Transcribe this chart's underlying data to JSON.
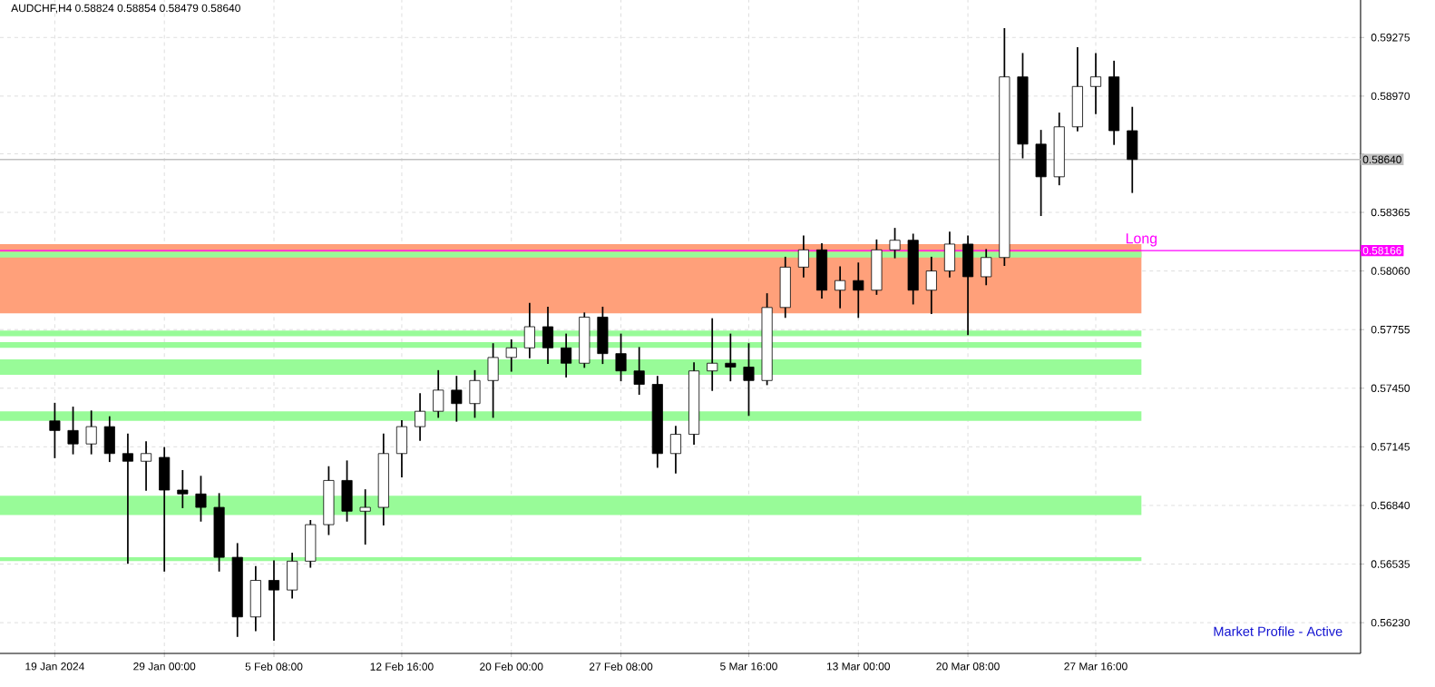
{
  "chart_data": {
    "type": "candlestick",
    "title": "AUDCHF,H4  0.58824 0.58854 0.58479 0.58640",
    "categories": [
      "19 Jan 2024",
      null,
      null,
      null,
      null,
      null,
      "29 Jan 00:00",
      null,
      null,
      null,
      null,
      null,
      "5 Feb 08:00",
      null,
      null,
      null,
      null,
      null,
      null,
      "12 Feb 16:00",
      null,
      null,
      null,
      null,
      null,
      "20 Feb 00:00",
      null,
      null,
      null,
      null,
      null,
      "27 Feb 08:00",
      null,
      null,
      null,
      null,
      null,
      null,
      "5 Mar 16:00",
      null,
      null,
      null,
      null,
      null,
      "13 Mar 00:00",
      null,
      null,
      null,
      null,
      null,
      "20 Mar 08:00",
      null,
      null,
      null,
      null,
      null,
      null,
      "27 Mar 16:00",
      null,
      null,
      null,
      null,
      null,
      null,
      null,
      null,
      null,
      null,
      null,
      null,
      null,
      null
    ],
    "ohlc": [
      [
        0.5728,
        0.5737,
        0.5709,
        0.5723
      ],
      [
        0.5723,
        0.5735,
        0.5711,
        0.5716
      ],
      [
        0.5716,
        0.5733,
        0.5711,
        0.5725
      ],
      [
        0.5725,
        0.573,
        0.5707,
        0.5711
      ],
      [
        0.5711,
        0.5721,
        0.5654,
        0.5707
      ],
      [
        0.5707,
        0.5717,
        0.5692,
        0.5711
      ],
      [
        0.5709,
        0.5714,
        0.565,
        0.5692
      ],
      [
        0.5692,
        0.5702,
        0.5683,
        0.569
      ],
      [
        0.569,
        0.5699,
        0.5676,
        0.5683
      ],
      [
        0.5683,
        0.569,
        0.565,
        0.5657
      ],
      [
        0.5657,
        0.5664,
        0.5616,
        0.5626
      ],
      [
        0.5626,
        0.5652,
        0.5619,
        0.5645
      ],
      [
        0.5645,
        0.5655,
        0.5614,
        0.564
      ],
      [
        0.564,
        0.5659,
        0.5636,
        0.5655
      ],
      [
        0.5655,
        0.5676,
        0.5652,
        0.5674
      ],
      [
        0.5674,
        0.5704,
        0.5669,
        0.5697
      ],
      [
        0.5697,
        0.5707,
        0.5676,
        0.5681
      ],
      [
        0.5681,
        0.5692,
        0.5664,
        0.5683
      ],
      [
        0.5683,
        0.5721,
        0.5674,
        0.5711
      ],
      [
        0.5711,
        0.5728,
        0.5699,
        0.5725
      ],
      [
        0.5725,
        0.5742,
        0.5718,
        0.5733
      ],
      [
        0.5733,
        0.5754,
        0.573,
        0.5744
      ],
      [
        0.5744,
        0.5751,
        0.5728,
        0.5737
      ],
      [
        0.5737,
        0.5754,
        0.573,
        0.5749
      ],
      [
        0.5749,
        0.5768,
        0.573,
        0.5761
      ],
      [
        0.5761,
        0.577,
        0.5754,
        0.5766
      ],
      [
        0.5766,
        0.5789,
        0.5761,
        0.5777
      ],
      [
        0.5777,
        0.5787,
        0.5758,
        0.5766
      ],
      [
        0.5766,
        0.5773,
        0.5751,
        0.5758
      ],
      [
        0.5758,
        0.5784,
        0.5756,
        0.5782
      ],
      [
        0.5782,
        0.5787,
        0.5758,
        0.5763
      ],
      [
        0.5763,
        0.5773,
        0.5749,
        0.5754
      ],
      [
        0.5754,
        0.5766,
        0.5742,
        0.5747
      ],
      [
        0.5747,
        0.5751,
        0.5704,
        0.5711
      ],
      [
        0.5711,
        0.5725,
        0.5701,
        0.5721
      ],
      [
        0.5721,
        0.5758,
        0.5716,
        0.5754
      ],
      [
        0.5754,
        0.5781,
        0.5744,
        0.5758
      ],
      [
        0.5758,
        0.5773,
        0.5749,
        0.5756
      ],
      [
        0.5756,
        0.5768,
        0.5731,
        0.5749
      ],
      [
        0.5749,
        0.5794,
        0.5747,
        0.5787
      ],
      [
        0.5787,
        0.5813,
        0.5782,
        0.5808
      ],
      [
        0.5808,
        0.5824,
        0.5803,
        0.5817
      ],
      [
        0.5817,
        0.582,
        0.5792,
        0.5796
      ],
      [
        0.5796,
        0.5808,
        0.5787,
        0.5801
      ],
      [
        0.5801,
        0.581,
        0.5782,
        0.5796
      ],
      [
        0.5796,
        0.5822,
        0.5794,
        0.5817
      ],
      [
        0.5817,
        0.5828,
        0.5813,
        0.5822
      ],
      [
        0.5822,
        0.5825,
        0.5789,
        0.5796
      ],
      [
        0.5796,
        0.5813,
        0.5784,
        0.5806
      ],
      [
        0.5806,
        0.5826,
        0.5803,
        0.582
      ],
      [
        0.582,
        0.5824,
        0.5773,
        0.5803
      ],
      [
        0.5803,
        0.5817,
        0.5799,
        0.5813
      ],
      [
        0.5813,
        0.5932,
        0.5809,
        0.5907
      ],
      [
        0.5907,
        0.5919,
        0.5865,
        0.5872
      ],
      [
        0.5872,
        0.5879,
        0.5835,
        0.5855
      ],
      [
        0.5855,
        0.5888,
        0.5851,
        0.5881
      ],
      [
        0.5881,
        0.5922,
        0.5879,
        0.5902
      ],
      [
        0.5902,
        0.5919,
        0.5888,
        0.5907
      ],
      [
        0.5907,
        0.5915,
        0.5872,
        0.5879
      ],
      [
        0.5879,
        0.5891,
        0.5847,
        0.5864
      ],
      null,
      null,
      null,
      null,
      null,
      null,
      null,
      null,
      null,
      null,
      null,
      null
    ],
    "ylim": [
      0.5607,
      0.5947
    ],
    "yticks": [
      {
        "value": 0.5623,
        "label": "0.56230"
      },
      0.56535,
      {
        "value": 0.5684,
        "label": "0.56840"
      },
      0.57145,
      {
        "value": 0.5745,
        "label": "0.57450"
      },
      0.57755,
      {
        "value": 0.5806,
        "label": "0.58060"
      },
      0.58365,
      {
        "value": 0.5867,
        "label": null
      },
      {
        "value": 0.5897,
        "label": "0.58970"
      },
      0.59275
    ],
    "grid": true,
    "bands": [
      {
        "axis": "y",
        "from": 0.5784,
        "to": 0.582,
        "color": "#ffa07a"
      },
      {
        "axis": "y",
        "from": 0.5679,
        "to": 0.5689,
        "color": "#98fb98"
      },
      {
        "axis": "y",
        "from": 0.5655,
        "to": 0.5657,
        "color": "#98fb98"
      },
      {
        "axis": "y",
        "from": 0.5728,
        "to": 0.5733,
        "color": "#98fb98"
      },
      {
        "axis": "y",
        "from": 0.5752,
        "to": 0.576,
        "color": "#98fb98"
      },
      {
        "axis": "y",
        "from": 0.5766,
        "to": 0.5769,
        "color": "#98fb98"
      },
      {
        "axis": "y",
        "from": 0.5772,
        "to": 0.5775,
        "color": "#98fb98"
      },
      {
        "axis": "y",
        "from": 0.5813,
        "to": 0.5816,
        "color": "#98fb98"
      }
    ],
    "ref_lines": [
      {
        "axis": "y",
        "value": 0.58166,
        "label": "0.58166",
        "color": "#ff00ff"
      },
      {
        "axis": "y",
        "value": 0.5864,
        "label": "0.58640",
        "color": "#c0c0c0"
      }
    ],
    "annotations": [
      {
        "text": "Long",
        "y": 0.58166
      },
      "Market Profile - Active"
    ]
  }
}
